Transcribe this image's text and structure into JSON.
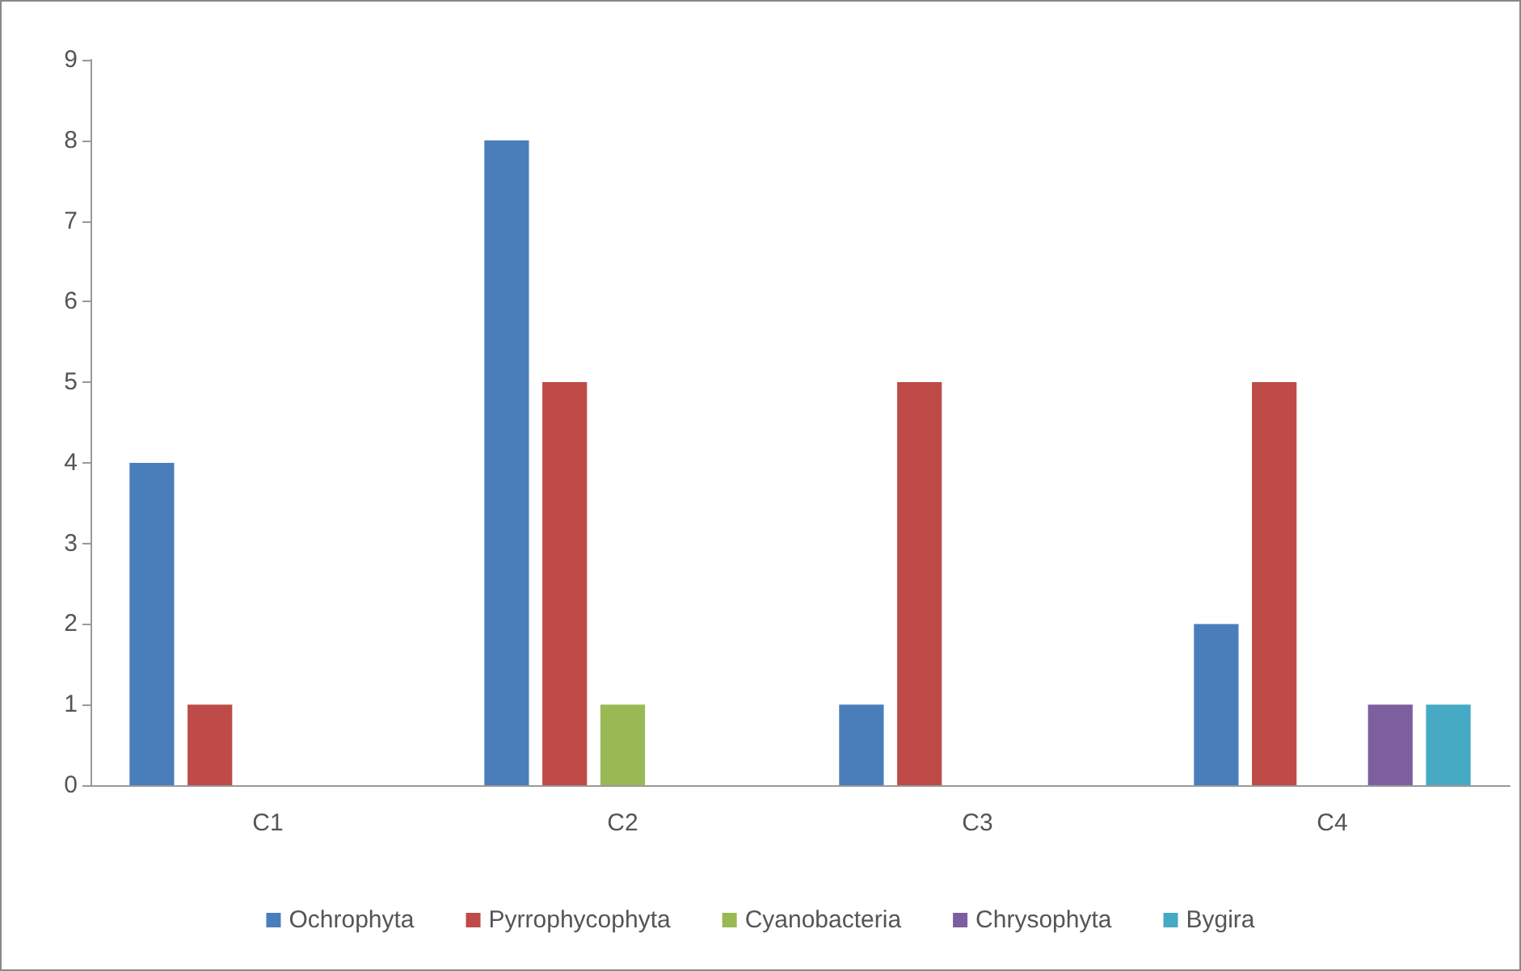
{
  "chart_data": {
    "type": "bar",
    "categories": [
      "C1",
      "C2",
      "C3",
      "C4"
    ],
    "series": [
      {
        "name": "Ochrophyta",
        "color": "#4a7ebb",
        "values": [
          4,
          8,
          1,
          2
        ]
      },
      {
        "name": "Pyrrophycophyta",
        "color": "#be4b48",
        "values": [
          1,
          5,
          5,
          5
        ]
      },
      {
        "name": "Cyanobacteria",
        "color": "#98b954",
        "values": [
          0,
          1,
          0,
          0
        ]
      },
      {
        "name": "Chrysophyta",
        "color": "#7d5fa0",
        "values": [
          0,
          0,
          0,
          1
        ]
      },
      {
        "name": "Bygira",
        "color": "#46aac5",
        "values": [
          0,
          0,
          0,
          1
        ]
      }
    ],
    "ylim": [
      0,
      9
    ],
    "yticks": [
      0,
      1,
      2,
      3,
      4,
      5,
      6,
      7,
      8,
      9
    ],
    "grid": false,
    "legend": "bottom"
  }
}
